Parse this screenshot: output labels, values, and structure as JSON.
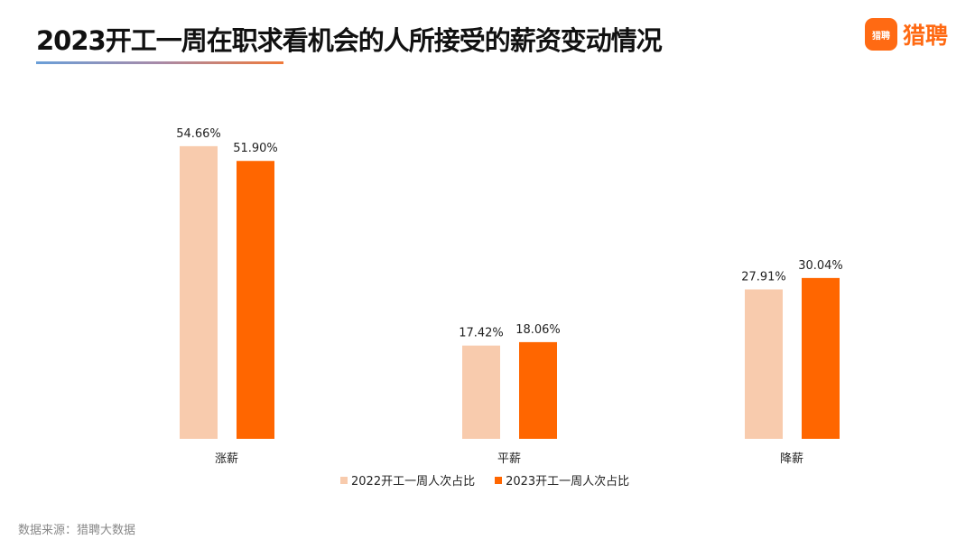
{
  "title": "2023开工一周在职求看机会的人所接受的薪资变动情况",
  "logo": {
    "icon_text": "猎聘",
    "text": "猎聘"
  },
  "source": "数据来源：猎聘大数据",
  "colors": {
    "s2022": "#f8cbad",
    "s2023": "#ff6600",
    "accent": "#ff6a13"
  },
  "chart_data": {
    "type": "bar",
    "categories": [
      "涨薪",
      "平薪",
      "降薪"
    ],
    "series": [
      {
        "name": "2022开工一周人次占比",
        "values": [
          54.66,
          17.42,
          27.91
        ],
        "labels": [
          "54.66%",
          "17.42%",
          "27.91%"
        ]
      },
      {
        "name": "2023开工一周人次占比",
        "values": [
          51.9,
          18.06,
          30.04
        ],
        "labels": [
          "51.90%",
          "18.06%",
          "30.04%"
        ]
      }
    ],
    "ylim": [
      0,
      60
    ],
    "grid": false,
    "legend": "bottom"
  }
}
